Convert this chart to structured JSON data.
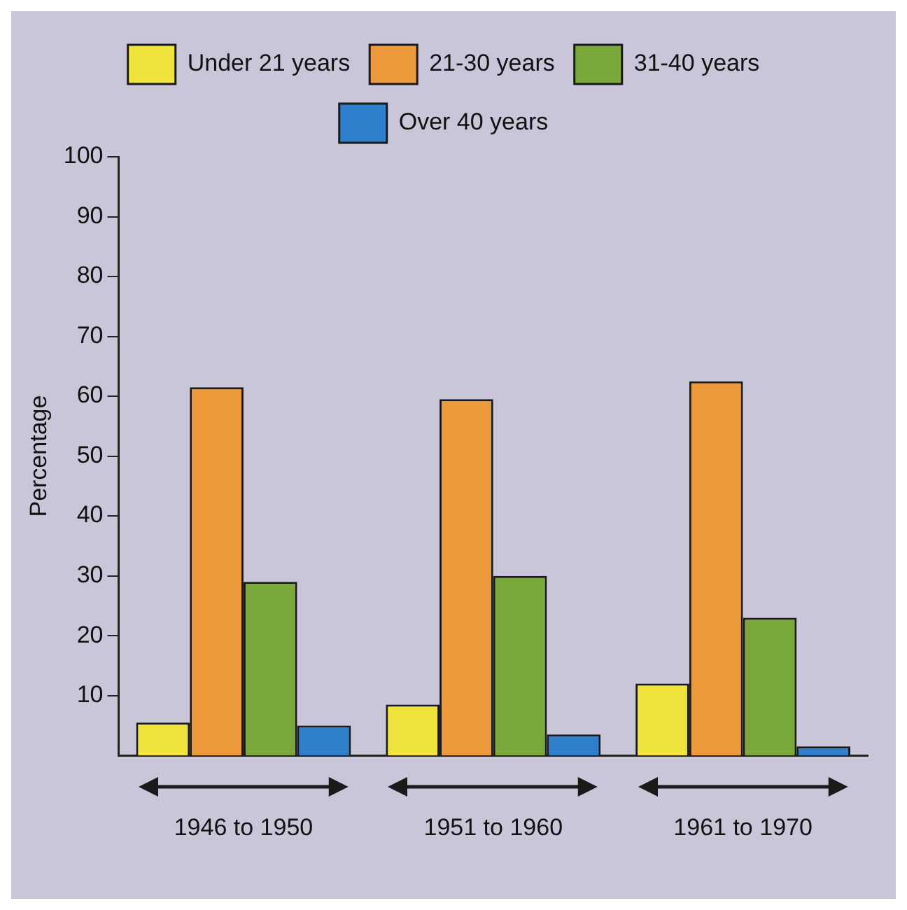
{
  "chart_data": {
    "type": "bar",
    "ylabel": "Percentage",
    "categories": [
      "1946 to 1950",
      "1951 to 1960",
      "1961 to 1970"
    ],
    "series": [
      {
        "name": "Under 21 years",
        "color": "#f0e43c",
        "values": [
          5.5,
          8.5,
          12
        ]
      },
      {
        "name": "21-30 years",
        "color": "#ec9a3c",
        "values": [
          61.5,
          59.5,
          62.5
        ]
      },
      {
        "name": "31-40 years",
        "color": "#7aa83a",
        "values": [
          29,
          30,
          23
        ]
      },
      {
        "name": "Over 40 years",
        "color": "#2f7fcc",
        "values": [
          5,
          3.5,
          1.5
        ]
      }
    ],
    "ylim": [
      0,
      100
    ],
    "yticks": [
      10,
      20,
      30,
      40,
      50,
      60,
      70,
      80,
      90,
      100
    ],
    "grid": false,
    "legend": "top"
  }
}
